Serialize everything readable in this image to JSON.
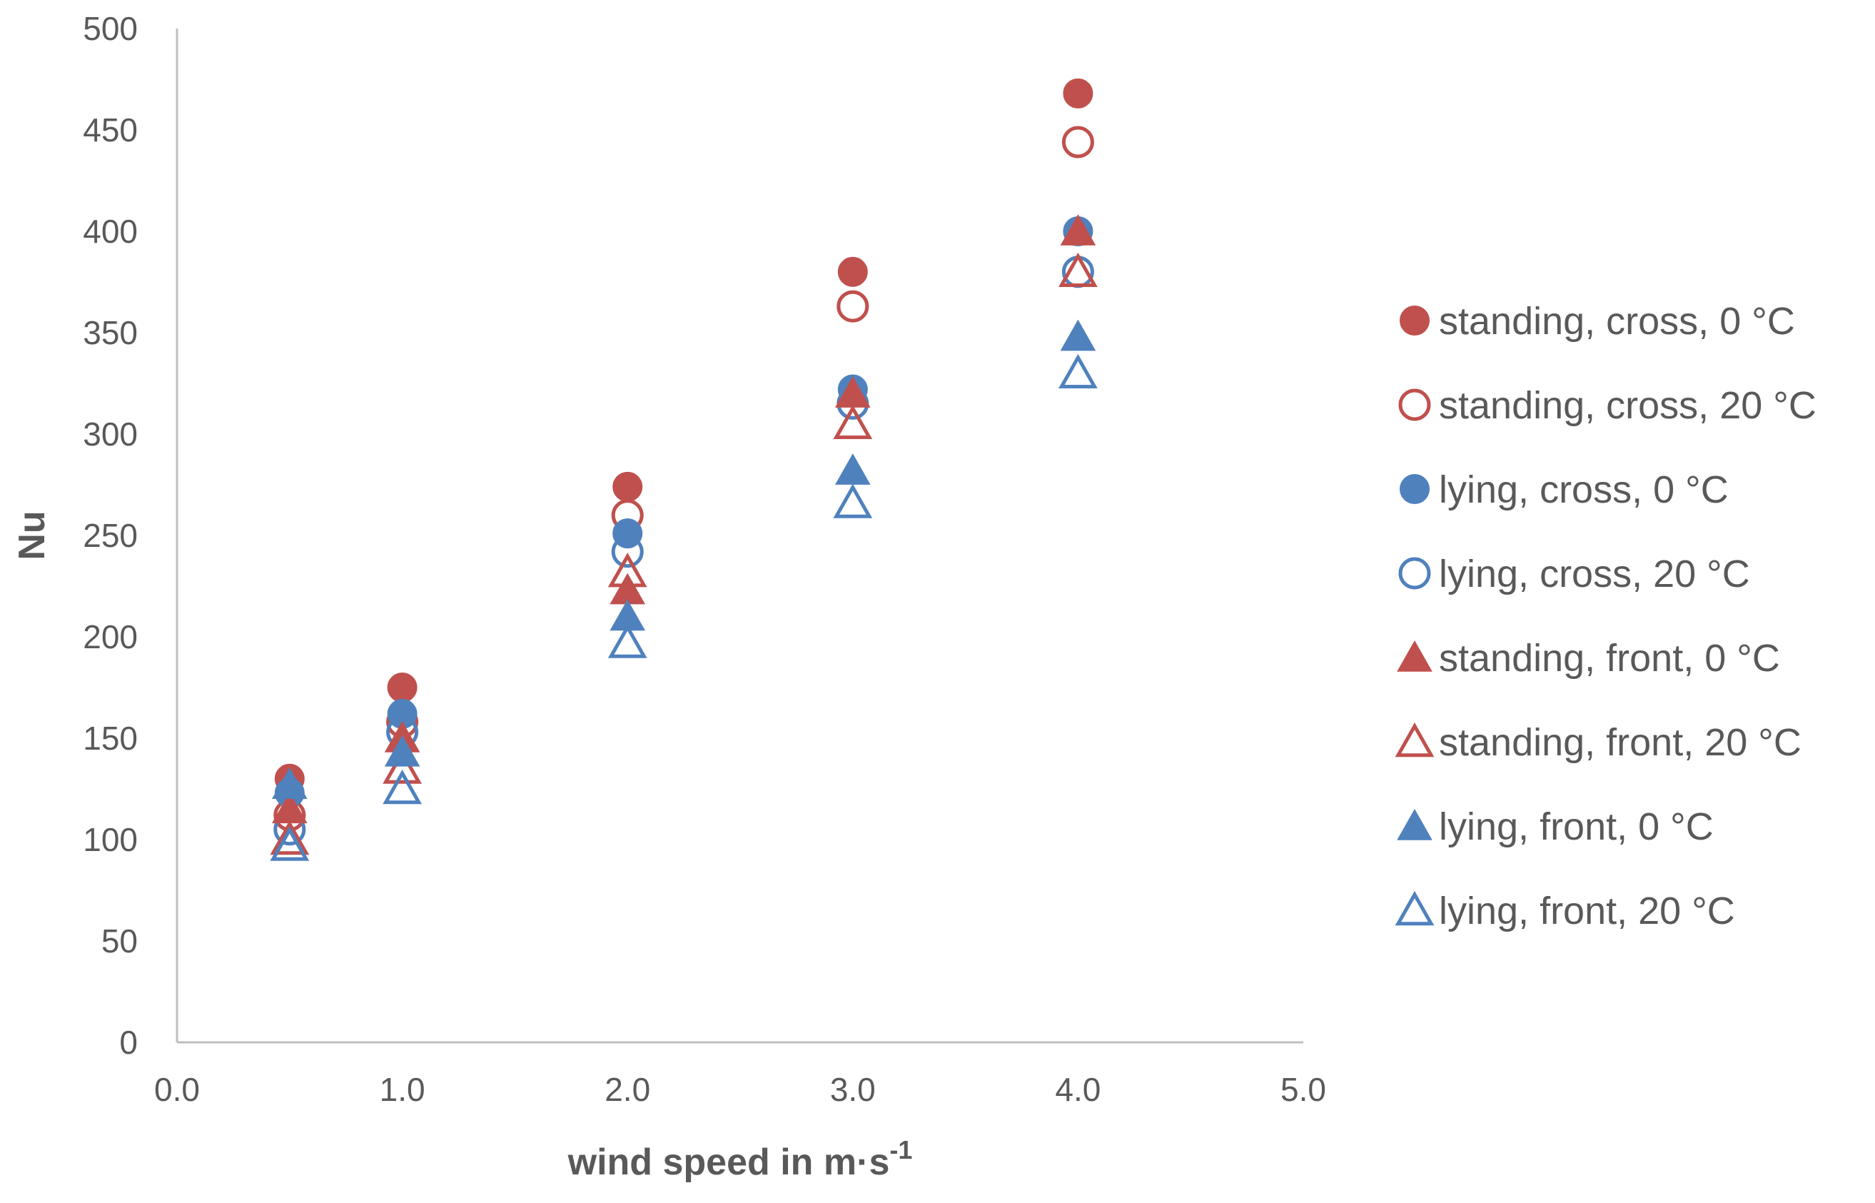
{
  "chart_data": {
    "type": "scatter",
    "title": "",
    "xlabel": "wind speed in m·s",
    "xlabel_superscript": "-1",
    "ylabel": "Nu",
    "xlim": [
      0,
      5
    ],
    "ylim": [
      0,
      500
    ],
    "xticks": [
      0,
      1,
      2,
      3,
      4,
      5
    ],
    "xtick_labels": [
      "0.0",
      "1.0",
      "2.0",
      "3.0",
      "4.0",
      "5.0"
    ],
    "yticks": [
      0,
      50,
      100,
      150,
      200,
      250,
      300,
      350,
      400,
      450,
      500
    ],
    "ytick_labels": [
      "0",
      "50",
      "100",
      "150",
      "200",
      "250",
      "300",
      "350",
      "400",
      "450",
      "500"
    ],
    "grid": false,
    "legend_position": "right",
    "colors": {
      "red": "#C0504D",
      "blue": "#4F81BD",
      "axis": "#BFBFBF",
      "text": "#595959"
    },
    "x": [
      0.5,
      1.0,
      2.0,
      3.0,
      4.0
    ],
    "series": [
      {
        "name": "standing, cross, 0 °C",
        "marker": "circle",
        "filled": true,
        "color": "#C0504D",
        "values": [
          130,
          175,
          274,
          380,
          468
        ]
      },
      {
        "name": "standing, cross, 20 °C",
        "marker": "circle",
        "filled": false,
        "color": "#C0504D",
        "values": [
          112,
          158,
          260,
          363,
          444
        ]
      },
      {
        "name": "lying, cross, 0 °C",
        "marker": "circle",
        "filled": true,
        "color": "#4F81BD",
        "values": [
          123,
          162,
          251,
          322,
          400
        ]
      },
      {
        "name": "lying, cross, 20 °C",
        "marker": "circle",
        "filled": false,
        "color": "#4F81BD",
        "values": [
          105,
          153,
          242,
          315,
          380
        ]
      },
      {
        "name": "standing, front, 0 °C",
        "marker": "triangle",
        "filled": true,
        "color": "#C0504D",
        "values": [
          115,
          150,
          223,
          320,
          400
        ]
      },
      {
        "name": "standing, front, 20 °C",
        "marker": "triangle",
        "filled": false,
        "color": "#C0504D",
        "values": [
          100,
          135,
          232,
          305,
          380
        ]
      },
      {
        "name": "lying, front, 0 °C",
        "marker": "triangle",
        "filled": true,
        "color": "#4F81BD",
        "values": [
          127,
          143,
          210,
          282,
          348
        ]
      },
      {
        "name": "lying, front, 20 °C",
        "marker": "triangle",
        "filled": false,
        "color": "#4F81BD",
        "values": [
          97,
          125,
          197,
          266,
          330
        ]
      }
    ]
  }
}
